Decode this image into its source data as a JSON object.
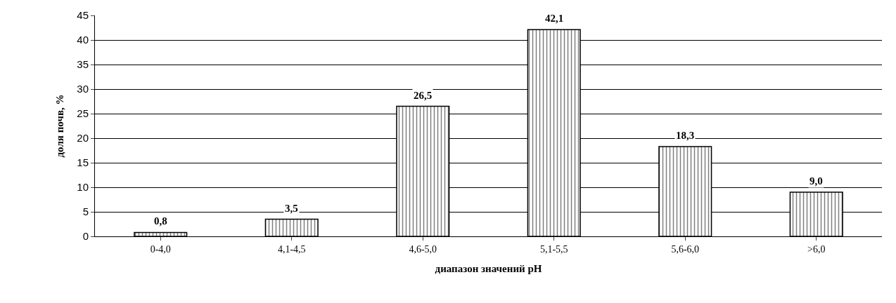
{
  "chart_data": {
    "type": "bar",
    "xlabel": "диапазон значений pH",
    "ylabel": "доля почв, %",
    "categories": [
      "0-4,0",
      "4,1-4,5",
      "4,6-5,0",
      "5,1-5,5",
      "5,6-6,0",
      ">6,0"
    ],
    "values": [
      0.8,
      3.5,
      26.5,
      42.1,
      18.3,
      9.0
    ],
    "value_labels": [
      "0,8",
      "3,5",
      "26,5",
      "42,1",
      "18,3",
      "9,0"
    ],
    "color": "#000000",
    "ylim": [
      0,
      45
    ],
    "yticks": [
      0,
      5,
      10,
      15,
      20,
      25,
      30,
      35,
      40,
      45
    ],
    "grid": "y"
  }
}
